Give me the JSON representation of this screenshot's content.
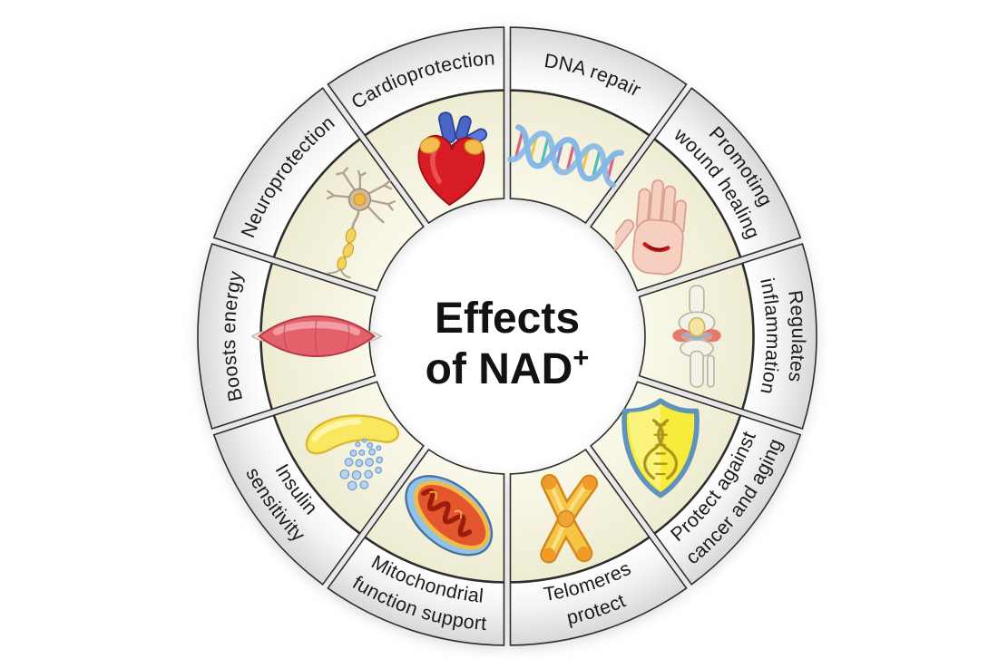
{
  "title": {
    "line1": "Effects",
    "line2": "of NAD",
    "superscript": "+"
  },
  "wheel": {
    "segments": [
      {
        "id": "dna-repair",
        "label_lines": [
          "DNA repair"
        ],
        "icon": "dna-icon"
      },
      {
        "id": "promoting-wound-healing",
        "label_lines": [
          "Promoting",
          "wound healing"
        ],
        "icon": "wounded-hand-icon"
      },
      {
        "id": "regulates-inflammation",
        "label_lines": [
          "Regulates",
          "inflammation"
        ],
        "icon": "knee-joint-icon"
      },
      {
        "id": "protect-against-cancer-and-aging",
        "label_lines": [
          "Protect against",
          "cancer and aging"
        ],
        "icon": "shield-dna-icon"
      },
      {
        "id": "telomeres-protect",
        "label_lines": [
          "Telomeres",
          "protect"
        ],
        "icon": "chromosome-icon"
      },
      {
        "id": "mitochondrial-function-support",
        "label_lines": [
          "Mitochondrial",
          "function support"
        ],
        "icon": "mitochondria-icon"
      },
      {
        "id": "insulin-sensitivity",
        "label_lines": [
          "Insulin",
          "sensitivity"
        ],
        "icon": "pancreas-icon"
      },
      {
        "id": "boosts-energy",
        "label_lines": [
          "Boosts energy"
        ],
        "icon": "muscle-icon"
      },
      {
        "id": "neuroprotection",
        "label_lines": [
          "Neuroprotection"
        ],
        "icon": "neuron-icon"
      },
      {
        "id": "cardioprotection",
        "label_lines": [
          "Cardioprotection"
        ],
        "icon": "heart-icon"
      }
    ]
  },
  "colors": {
    "background": "#ffffff",
    "segment_outline": "#2e2e2e",
    "label_band_inner": "#ffffff",
    "label_band_outer": "#d8d8d8",
    "icon_band_inner": "#faf9ea",
    "icon_band_outer": "#eeecd2",
    "title_text": "#121212",
    "label_text": "#1b1b1b"
  }
}
